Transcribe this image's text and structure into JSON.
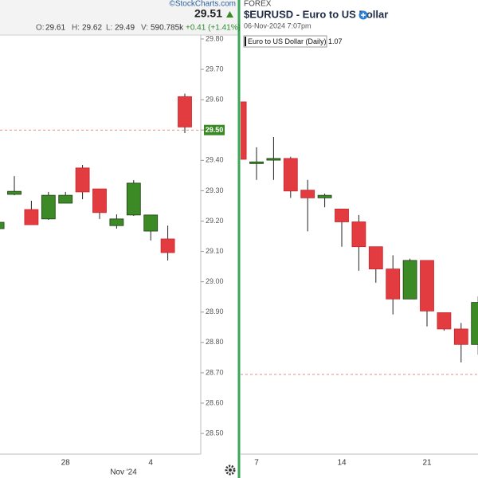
{
  "chart_data": [
    {
      "type": "candlestick",
      "source": "©StockCharts.com",
      "last": 29.51,
      "stats": [
        {
          "label": "O:",
          "value": 29.61
        },
        {
          "label": "H:",
          "value": 29.62
        },
        {
          "label": "L:",
          "value": 29.49
        },
        {
          "label": "V:",
          "value": "590.785k"
        }
      ],
      "change": "+0.41 (+1.41%)",
      "categories": [
        null,
        null,
        null,
        null,
        "28",
        null,
        null,
        null,
        null,
        "4",
        null,
        null
      ],
      "period_label": "Nov '24",
      "open": [
        29.175,
        29.288,
        29.238,
        29.207,
        29.259,
        29.375,
        29.306,
        29.185,
        29.22,
        29.167,
        29.141,
        29.61
      ],
      "high": [
        29.196,
        29.348,
        29.267,
        29.296,
        29.296,
        29.385,
        29.306,
        29.222,
        29.335,
        29.22,
        29.185,
        29.62
      ],
      "low": [
        29.175,
        29.285,
        29.188,
        29.204,
        29.259,
        29.272,
        29.207,
        29.175,
        29.217,
        29.136,
        29.07,
        29.49
      ],
      "close": [
        29.196,
        29.298,
        29.188,
        29.285,
        29.285,
        29.296,
        29.228,
        29.207,
        29.325,
        29.22,
        29.096,
        29.51
      ],
      "up_color": "#3b8a26",
      "down_color": "#e23b40",
      "ylim": [
        28.432,
        29.813
      ],
      "yticks": [
        {
          "value": 29.8,
          "label": "29.80"
        },
        {
          "value": 29.7,
          "label": "29.70"
        },
        {
          "value": 29.6,
          "label": "29.60"
        },
        {
          "value": 29.5,
          "label": "29.50"
        },
        {
          "value": 29.4,
          "label": "29.40"
        },
        {
          "value": 29.3,
          "label": "29.30"
        },
        {
          "value": 29.2,
          "label": "29.20"
        },
        {
          "value": 29.1,
          "label": "29.10"
        },
        {
          "value": 29.0,
          "label": "29.00"
        },
        {
          "value": 28.9,
          "label": "28.90"
        },
        {
          "value": 28.8,
          "label": "28.80"
        },
        {
          "value": 28.7,
          "label": "28.70"
        },
        {
          "value": 28.6,
          "label": "28.60"
        },
        {
          "value": 28.5,
          "label": "28.50"
        }
      ],
      "price_line": {
        "value": 29.5,
        "label": "29.50"
      }
    },
    {
      "type": "candlestick",
      "exchange": "FOREX",
      "symbol": "$EURUSD - Euro to US Dollar",
      "timestamp": "06-Nov-2024 7:07pm",
      "legend": "Euro to US Dollar (Daily) 1.07",
      "categories": [
        null,
        "7",
        null,
        null,
        null,
        null,
        "14",
        null,
        null,
        null,
        null,
        "21",
        null,
        null,
        null
      ],
      "open": [
        1.1047,
        1.0975,
        1.0979,
        1.0981,
        1.0944,
        1.0935,
        1.0922,
        1.0907,
        1.0878,
        1.0852,
        1.0817,
        1.0862,
        1.0801,
        1.0782,
        1.0764
      ],
      "high": [
        1.1047,
        1.0994,
        1.1006,
        1.0983,
        1.0956,
        1.094,
        1.0922,
        1.0915,
        1.0878,
        1.0868,
        1.0864,
        1.0862,
        1.0801,
        1.0789,
        1.082
      ],
      "low": [
        1.098,
        1.0956,
        1.0956,
        1.0935,
        1.0896,
        1.0924,
        1.0878,
        1.085,
        1.0836,
        1.0799,
        1.0817,
        1.0785,
        1.078,
        1.0743,
        1.0752
      ],
      "close": [
        1.098,
        1.0977,
        1.0981,
        1.0943,
        1.0935,
        1.0938,
        1.0907,
        1.0878,
        1.0852,
        1.0817,
        1.0862,
        1.0803,
        1.0782,
        1.0764,
        1.0813
      ],
      "up_color": "#3b8a26",
      "down_color": "#e23b40",
      "ylim": [
        1.0636,
        1.1125
      ],
      "price_line": {
        "value": 1.0729
      }
    }
  ]
}
